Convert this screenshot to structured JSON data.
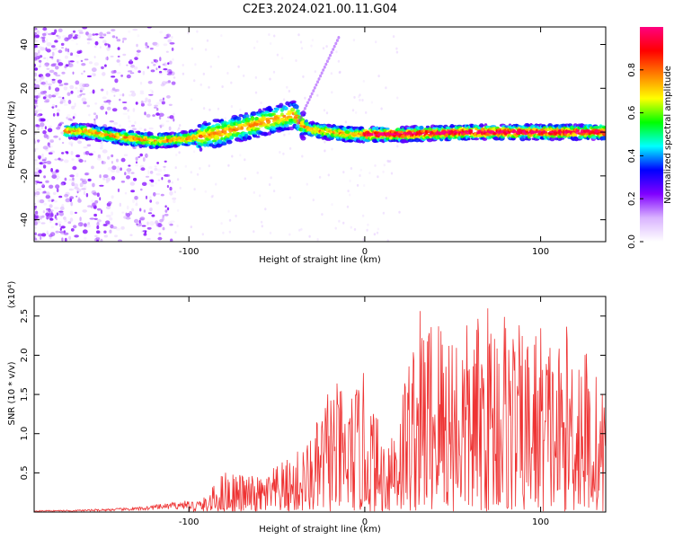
{
  "title": "C2E3.2024.021.00.11.G04",
  "chart_data": [
    {
      "type": "heatmap",
      "xlabel": "Height of straight line (km)",
      "ylabel": "Frequency (Hz)",
      "xlim": [
        -188,
        137
      ],
      "ylim": [
        -50,
        48
      ],
      "xticks": [
        -100,
        0,
        100
      ],
      "yticks": [
        -40,
        -20,
        0,
        20,
        40
      ],
      "colorbar": {
        "label": "Normalized spectral amplitude",
        "range": [
          0,
          1
        ],
        "ticks": [
          "0.0",
          "0.2",
          "0.4",
          "0.6",
          "0.8"
        ],
        "colormap": [
          "#ffffff",
          "#d9b3ff",
          "#8000ff",
          "#0000ff",
          "#00ffff",
          "#00ff00",
          "#ffff00",
          "#ff8000",
          "#ff0000",
          "#ff0080"
        ]
      },
      "ridge": {
        "x": [
          -188,
          -160,
          -140,
          -120,
          -100,
          -80,
          -60,
          -50,
          -40,
          -35,
          -30,
          -20,
          -10,
          0,
          20,
          40,
          60,
          80,
          100,
          120,
          137
        ],
        "frequency": [
          0.5,
          0.5,
          -2,
          -4,
          -3,
          0,
          4,
          6,
          8,
          3,
          1,
          0,
          -1,
          -1,
          -1,
          -0.5,
          0,
          0,
          0,
          0,
          0
        ]
      }
    },
    {
      "type": "line",
      "xlabel": "Height of straight line (km)",
      "ylabel": "SNR (10 * v/v)",
      "y_multiplier": "(x10⁴)",
      "xlim": [
        -188,
        137
      ],
      "ylim": [
        0,
        2.75
      ],
      "xticks": [
        -100,
        0,
        100
      ],
      "yticks": [
        "0.5",
        "1.0",
        "1.5",
        "2.0",
        "2.5"
      ],
      "series_color": "#ee3333",
      "envelope": {
        "x": [
          -188,
          -160,
          -130,
          -100,
          -90,
          -80,
          -60,
          -40,
          -30,
          -25,
          -20,
          -10,
          0,
          10,
          20,
          30,
          40,
          50,
          60,
          70,
          80,
          90,
          100,
          110,
          120,
          130,
          137
        ],
        "peak": [
          0.02,
          0.03,
          0.06,
          0.15,
          0.2,
          0.55,
          0.45,
          0.75,
          1.0,
          1.3,
          1.75,
          1.5,
          1.8,
          1.0,
          1.6,
          2.6,
          2.7,
          2.6,
          2.4,
          2.7,
          2.75,
          2.3,
          2.5,
          2.2,
          2.6,
          1.9,
          1.5
        ]
      }
    }
  ]
}
